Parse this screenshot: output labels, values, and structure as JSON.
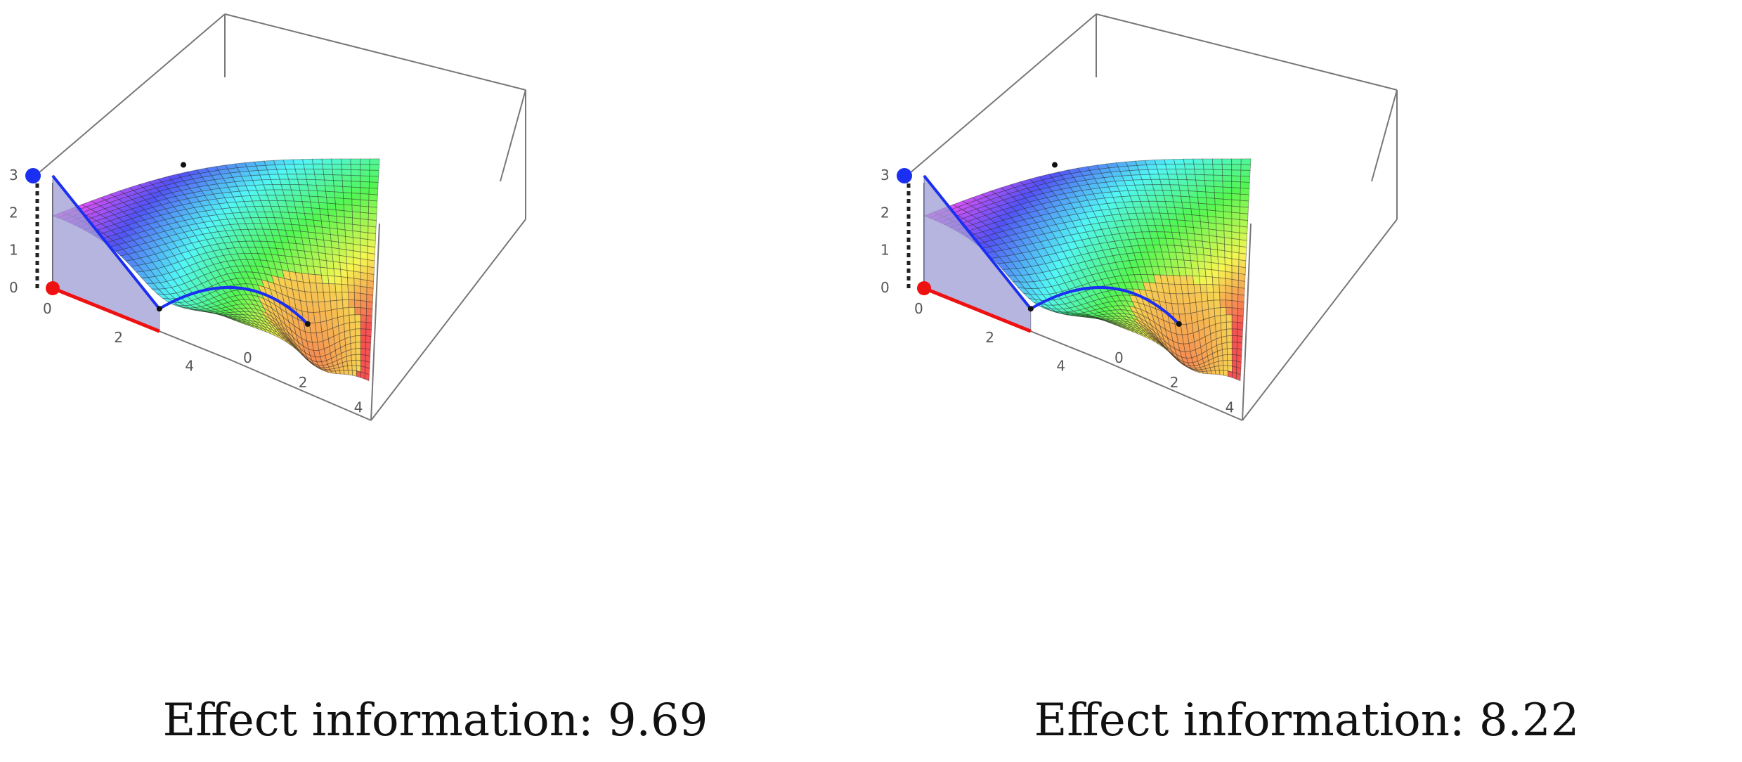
{
  "chart_data": [
    {
      "type": "surface",
      "panel": "left",
      "caption_label": "Effect information:",
      "caption_value": "9.69",
      "x_ticks": [
        "0",
        "2",
        "4"
      ],
      "y_ticks": [
        "0",
        "2",
        "4"
      ],
      "z_ticks": [
        "0",
        "1",
        "2",
        "3"
      ],
      "xlim": [
        0,
        5
      ],
      "ylim": [
        0,
        5
      ],
      "zlim": [
        0,
        3
      ],
      "start_point": {
        "x": 0,
        "y": 0,
        "z": 3,
        "color": "#1a2ff2"
      },
      "base_point": {
        "x": 0,
        "y": 0,
        "z": 0,
        "color": "#ee1111"
      },
      "waypoints": [
        {
          "x": 3,
          "y": 0,
          "z": 0.6
        },
        {
          "x": 0,
          "y": 2,
          "z": 2.6
        }
      ],
      "goal_point": {
        "x": 4,
        "y": 3.2,
        "z": 1.2
      },
      "path_color": "#1a2ff2",
      "ground_path_color": "#ee1111",
      "shaded_wall_color": "#9c9cd6"
    },
    {
      "type": "surface",
      "panel": "right",
      "caption_label": "Effect information:",
      "caption_value": "8.22",
      "x_ticks": [
        "0",
        "2",
        "4"
      ],
      "y_ticks": [
        "0",
        "2",
        "4"
      ],
      "z_ticks": [
        "0",
        "1",
        "2",
        "3"
      ],
      "xlim": [
        0,
        5
      ],
      "ylim": [
        0,
        5
      ],
      "zlim": [
        0,
        3
      ],
      "start_point": {
        "x": 0,
        "y": 0,
        "z": 3,
        "color": "#1a2ff2"
      },
      "base_point": {
        "x": 0,
        "y": 0,
        "z": 0,
        "color": "#ee1111"
      },
      "waypoints": [
        {
          "x": 3,
          "y": 0,
          "z": 0.6
        },
        {
          "x": 0,
          "y": 2,
          "z": 2.6
        }
      ],
      "goal_point": {
        "x": 4,
        "y": 3.2,
        "z": 1.2
      },
      "path_color": "#1a2ff2",
      "ground_path_color": "#ee1111",
      "shaded_wall_color": "#9c9cd6"
    }
  ]
}
